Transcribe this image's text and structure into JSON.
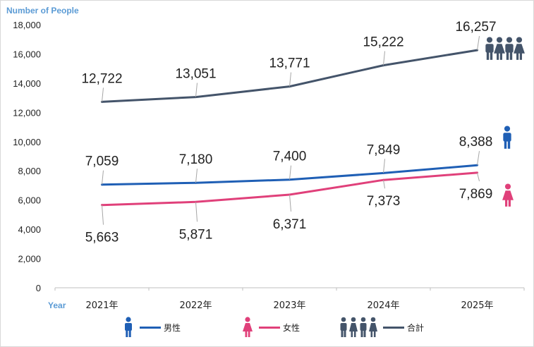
{
  "chart_data": {
    "type": "line",
    "ylabel": "Number of People",
    "xlabel": "Year",
    "categories": [
      "2021年",
      "2022年",
      "2023年",
      "2024年",
      "2025年"
    ],
    "ylim": [
      0,
      18000
    ],
    "yticks": [
      "0",
      "2,000",
      "4,000",
      "6,000",
      "8,000",
      "10,000",
      "12,000",
      "14,000",
      "16,000",
      "18,000"
    ],
    "grid": false,
    "legend_position": "bottom",
    "series": [
      {
        "name": "男性",
        "color": "#1f5fb5",
        "icon": "male-person-icon",
        "values": [
          7059,
          7180,
          7400,
          7849,
          8388
        ],
        "labels": [
          "7,059",
          "7,180",
          "7,400",
          "7,849",
          "8,388"
        ]
      },
      {
        "name": "女性",
        "color": "#e0407a",
        "icon": "female-person-icon",
        "values": [
          5663,
          5871,
          6371,
          7373,
          7869
        ],
        "labels": [
          "5,663",
          "5,871",
          "6,371",
          "7,373",
          "7,869"
        ]
      },
      {
        "name": "合計",
        "color": "#44546a",
        "icon": "group-people-icon",
        "values": [
          12722,
          13051,
          13771,
          15222,
          16257
        ],
        "labels": [
          "12,722",
          "13,051",
          "13,771",
          "15,222",
          "16,257"
        ]
      }
    ]
  }
}
